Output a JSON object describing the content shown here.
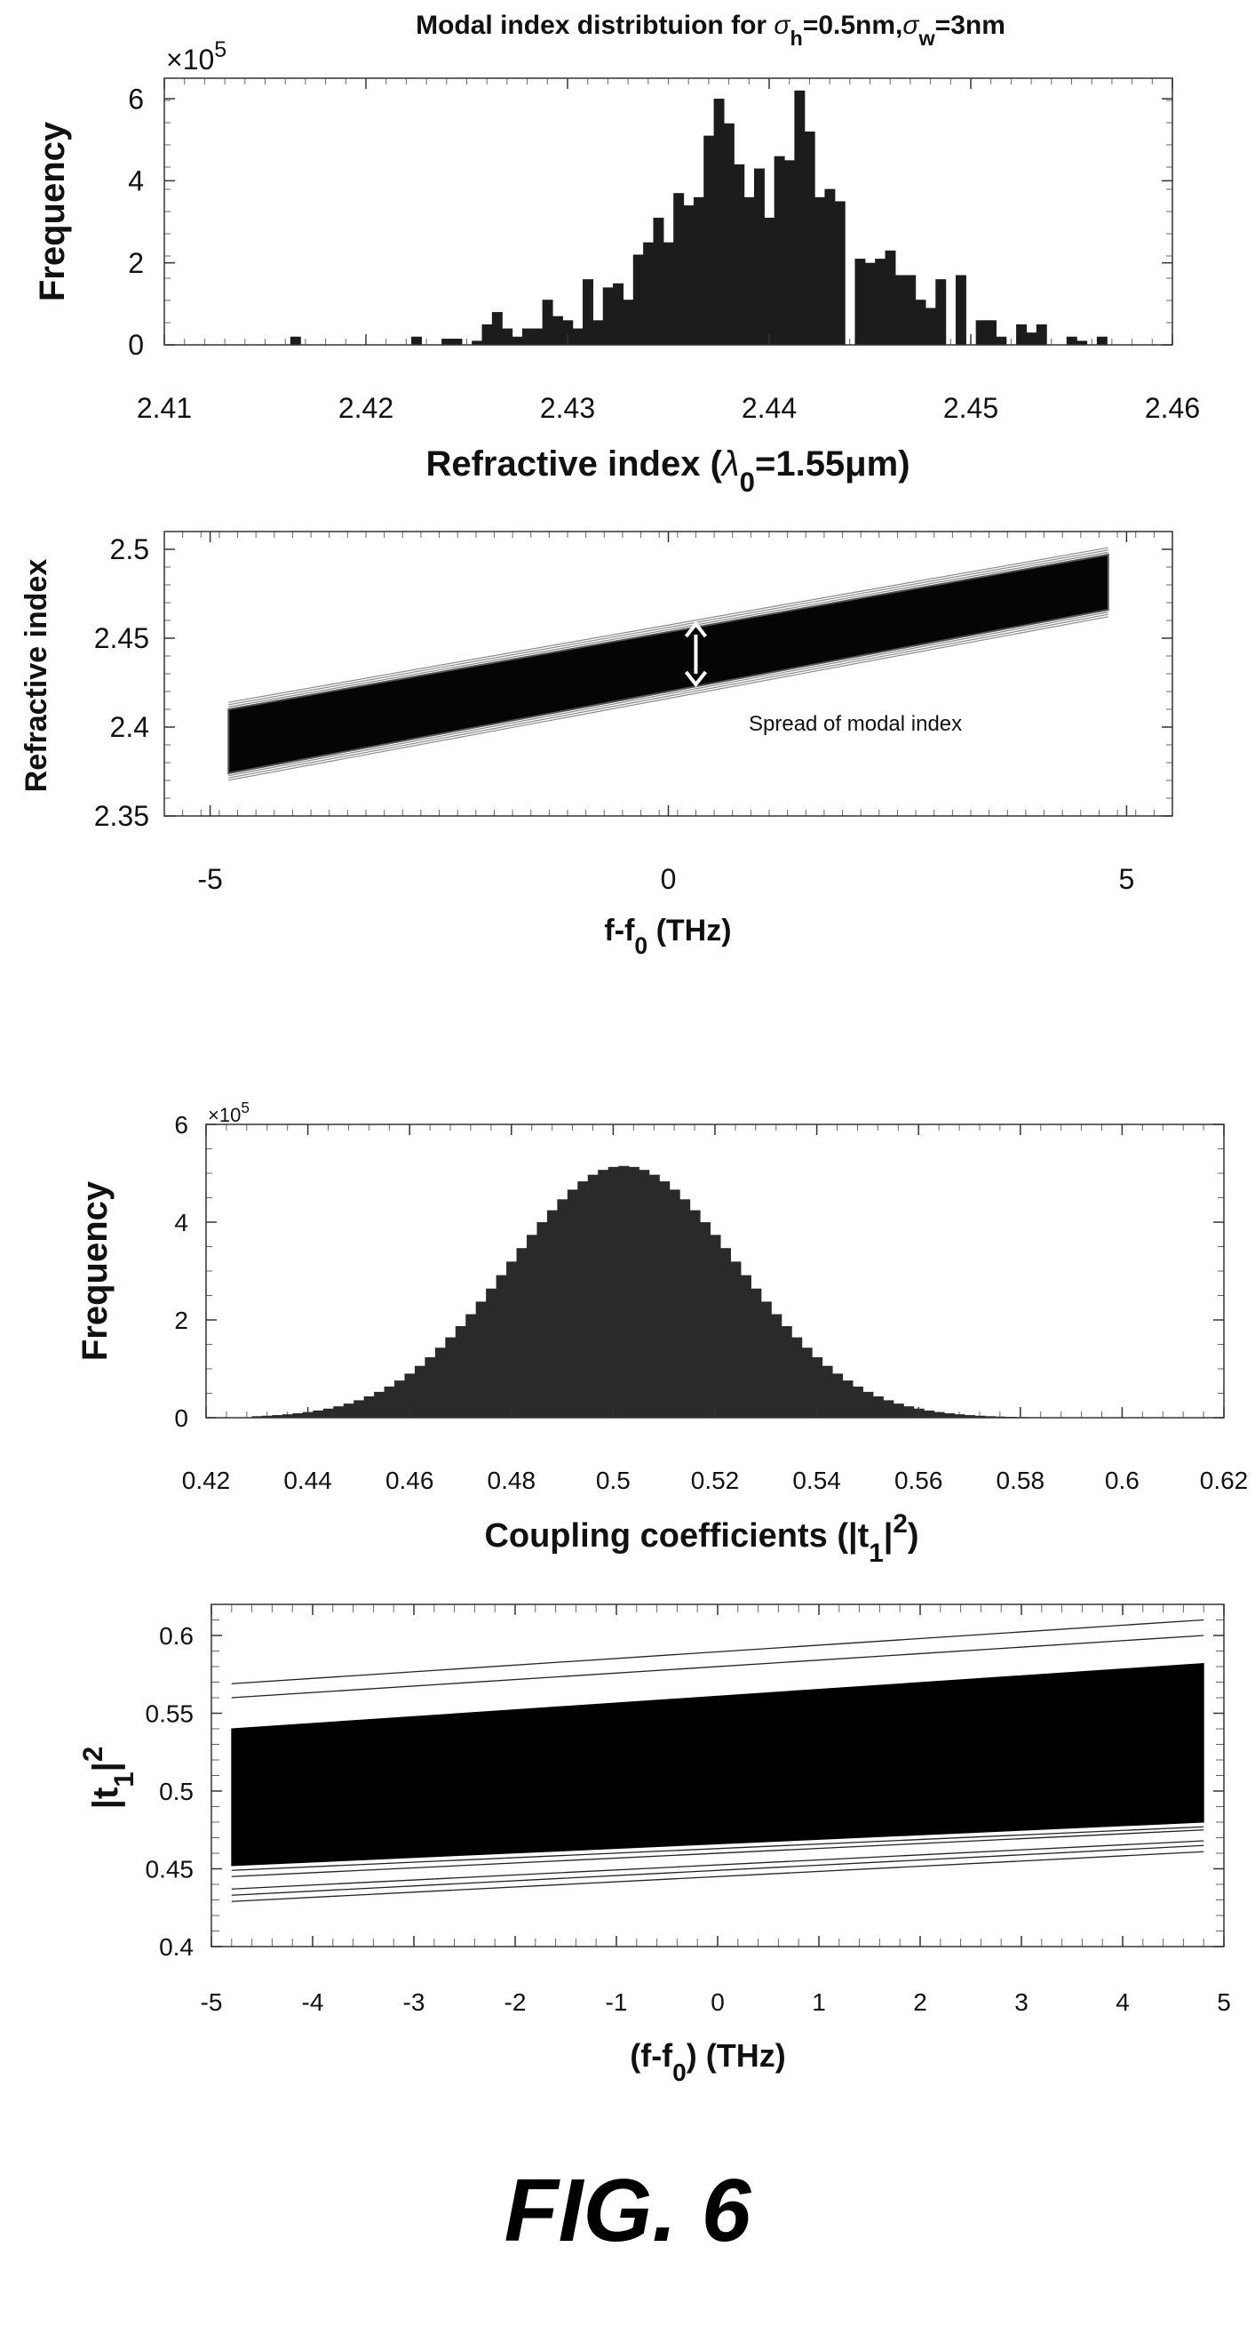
{
  "figure_label": "FIG. 6",
  "chart_data": [
    {
      "type": "bar",
      "title": "Modal index distribtuion for σh=0.5nm,σw=3nm",
      "title_parts": {
        "prefix": "Modal index distribtuion for ",
        "sym1": "σ",
        "sub1": "h",
        "mid": "=0.5nm,",
        "sym2": "σ",
        "sub2": "w",
        "suffix": "=3nm"
      },
      "multiplier": {
        "base": "×10",
        "exp": "5"
      },
      "xlabel": "Refractive index (λ0=1.55μm)",
      "xlabel_parts": {
        "prefix": "Refractive index (",
        "sym": "λ",
        "sub": "0",
        "suffix": "=1.55μm)"
      },
      "ylabel": "Frequency",
      "xlim": [
        2.41,
        2.46
      ],
      "ylim": [
        0,
        6.5
      ],
      "xticks": [
        "2.41",
        "2.42",
        "2.43",
        "2.44",
        "2.45",
        "2.46"
      ],
      "yticks": [
        "0",
        "2",
        "4",
        "6"
      ],
      "bin_width": 0.0005,
      "bins": [
        [
          2.4165,
          0.2
        ],
        [
          2.4225,
          0.2
        ],
        [
          2.424,
          0.15
        ],
        [
          2.4245,
          0.15
        ],
        [
          2.4255,
          0.1
        ],
        [
          2.426,
          0.5
        ],
        [
          2.4265,
          0.8
        ],
        [
          2.427,
          0.4
        ],
        [
          2.4275,
          0.2
        ],
        [
          2.428,
          0.4
        ],
        [
          2.4285,
          0.4
        ],
        [
          2.429,
          1.1
        ],
        [
          2.4295,
          0.7
        ],
        [
          2.43,
          0.6
        ],
        [
          2.4305,
          0.4
        ],
        [
          2.431,
          1.6
        ],
        [
          2.4315,
          0.6
        ],
        [
          2.432,
          1.4
        ],
        [
          2.4325,
          1.5
        ],
        [
          2.433,
          1.1
        ],
        [
          2.4335,
          2.2
        ],
        [
          2.434,
          2.5
        ],
        [
          2.4345,
          3.1
        ],
        [
          2.435,
          2.5
        ],
        [
          2.4355,
          3.7
        ],
        [
          2.436,
          3.4
        ],
        [
          2.4365,
          3.6
        ],
        [
          2.437,
          5.1
        ],
        [
          2.4375,
          6.0
        ],
        [
          2.438,
          5.4
        ],
        [
          2.4385,
          4.4
        ],
        [
          2.439,
          3.6
        ],
        [
          2.4395,
          4.3
        ],
        [
          2.44,
          3.1
        ],
        [
          2.4405,
          4.6
        ],
        [
          2.441,
          4.5
        ],
        [
          2.4415,
          6.2
        ],
        [
          2.442,
          5.2
        ],
        [
          2.4425,
          3.6
        ],
        [
          2.443,
          3.8
        ],
        [
          2.4435,
          3.5
        ],
        [
          2.4445,
          2.1
        ],
        [
          2.445,
          2.0
        ],
        [
          2.4455,
          2.1
        ],
        [
          2.446,
          2.3
        ],
        [
          2.4465,
          1.7
        ],
        [
          2.447,
          1.7
        ],
        [
          2.4475,
          1.1
        ],
        [
          2.448,
          0.9
        ],
        [
          2.4485,
          1.6
        ],
        [
          2.4495,
          1.7
        ],
        [
          2.4505,
          0.6
        ],
        [
          2.451,
          0.6
        ],
        [
          2.4515,
          0.2
        ],
        [
          2.4525,
          0.5
        ],
        [
          2.453,
          0.3
        ],
        [
          2.4535,
          0.5
        ],
        [
          2.455,
          0.2
        ],
        [
          2.4555,
          0.1
        ],
        [
          2.4565,
          0.2
        ]
      ]
    },
    {
      "type": "area",
      "ylabel": "Refractive index",
      "xlabel": "f-f0 (THz)",
      "xlabel_parts": {
        "prefix": "f-f",
        "sub": "0",
        "suffix": " (THz)"
      },
      "xlim": [
        -5.5,
        5.5
      ],
      "ylim": [
        2.35,
        2.51
      ],
      "xticks": [
        "-5",
        "0",
        "5"
      ],
      "yticks": [
        "2.35",
        "2.4",
        "2.45",
        "2.5"
      ],
      "band": {
        "x": [
          -4.8,
          4.8
        ],
        "upper": [
          2.41,
          2.497
        ],
        "lower": [
          2.374,
          2.466
        ]
      },
      "annotation": "Spread of modal index",
      "arrow": {
        "x": 0.3,
        "from": 2.424,
        "to": 2.458
      }
    },
    {
      "type": "bar",
      "multiplier": {
        "base": "×10",
        "exp": "5"
      },
      "ylabel": "Frequency",
      "xlabel": "Coupling coefficients (|t1|2)",
      "xlabel_parts": {
        "prefix": "Coupling coefficients (|t",
        "sub": "1",
        "mid": "|",
        "sup": "2",
        "suffix": ")"
      },
      "xlim": [
        0.42,
        0.62
      ],
      "ylim": [
        0,
        6
      ],
      "xticks": [
        "0.42",
        "0.44",
        "0.46",
        "0.48",
        "0.5",
        "0.52",
        "0.54",
        "0.56",
        "0.58",
        "0.6",
        "0.62"
      ],
      "yticks": [
        "0",
        "2",
        "4",
        "6"
      ],
      "distribution": {
        "mean": 0.502,
        "sigma": 0.0225,
        "peak": 5.15,
        "bin_width": 0.002,
        "x_range": [
          0.43,
          0.6
        ]
      }
    },
    {
      "type": "area",
      "ylabel": "|t1|2",
      "ylabel_parts": {
        "prefix": "|t",
        "sub": "1",
        "mid": "|",
        "sup": "2"
      },
      "xlabel": "(f-f0) (THz)",
      "xlabel_parts": {
        "prefix": "(f-f",
        "sub": "0",
        "suffix": ") (THz)"
      },
      "xlim": [
        -5,
        5
      ],
      "ylim": [
        0.4,
        0.62
      ],
      "xticks": [
        "-5",
        "-4",
        "-3",
        "-2",
        "-1",
        "0",
        "1",
        "2",
        "3",
        "4",
        "5"
      ],
      "yticks": [
        "0.4",
        "0.45",
        "0.5",
        "0.55",
        "0.6"
      ],
      "band": {
        "x": [
          -4.8,
          4.8
        ],
        "upper": [
          0.54,
          0.582
        ],
        "lower": [
          0.452,
          0.48
        ]
      },
      "outlier_lines": [
        [
          0.569,
          0.61
        ],
        [
          0.56,
          0.6
        ],
        [
          0.437,
          0.468
        ],
        [
          0.433,
          0.465
        ],
        [
          0.429,
          0.461
        ],
        [
          0.445,
          0.475
        ],
        [
          0.449,
          0.477
        ],
        [
          0.531,
          0.573
        ],
        [
          0.527,
          0.57
        ]
      ]
    }
  ]
}
